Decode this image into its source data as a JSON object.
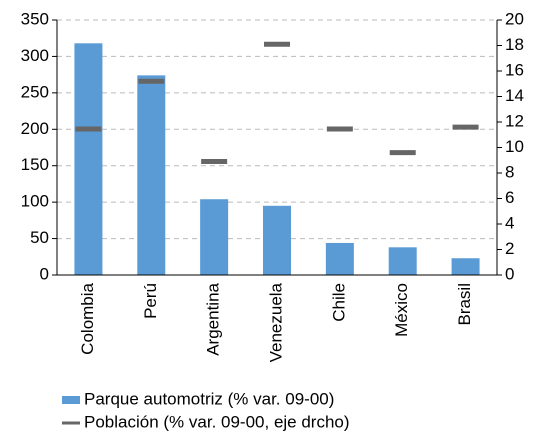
{
  "chart_data": {
    "type": "bar",
    "categories": [
      "Colombia",
      "Perú",
      "Argentina",
      "Venezuela",
      "Chile",
      "México",
      "Brasil"
    ],
    "series": [
      {
        "name": "Parque automotriz (% var. 09-00)",
        "color": "#5b9bd5",
        "values": [
          318,
          274,
          104,
          95,
          44,
          38,
          23
        ]
      },
      {
        "name": "Población (% var. 09-00, eje drcho)",
        "color": "#666666",
        "axis": "y2",
        "mark": "dash",
        "values": [
          11.45,
          15.2,
          8.9,
          18.1,
          11.45,
          9.6,
          11.6
        ]
      }
    ],
    "ylim": [
      0,
      350
    ],
    "yticks": [
      0,
      50,
      100,
      150,
      200,
      250,
      300,
      350
    ],
    "y2lim": [
      0,
      20
    ],
    "y2ticks": [
      0,
      2,
      4,
      6,
      8,
      10,
      12,
      14,
      16,
      18,
      20
    ],
    "grid": true,
    "legend": "bottom"
  }
}
